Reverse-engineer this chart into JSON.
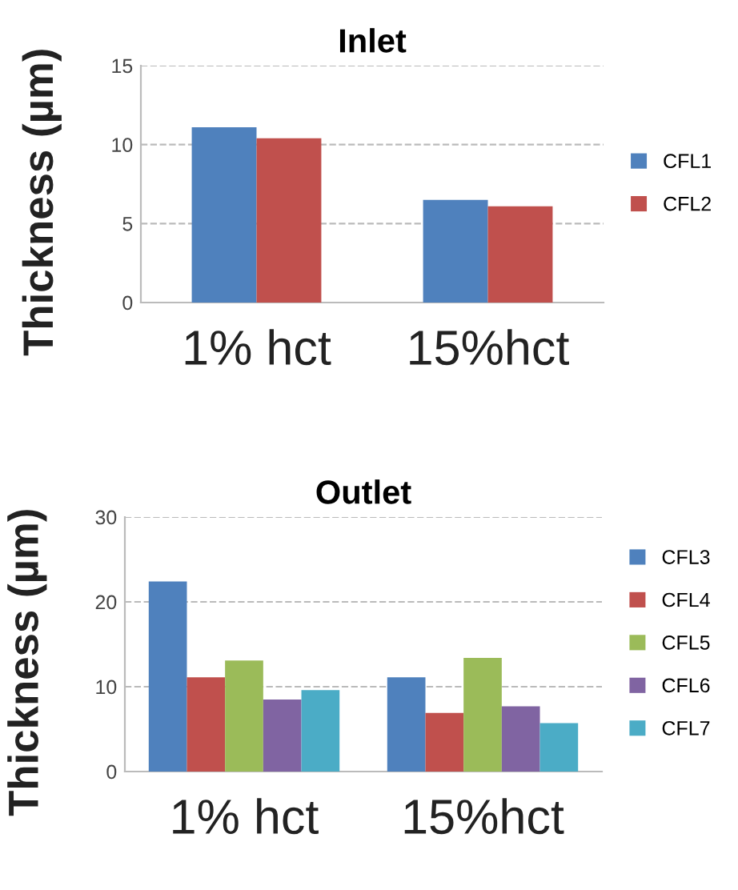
{
  "chart_data": [
    {
      "type": "bar",
      "title": "Inlet",
      "ylabel": "Thickness (µm)",
      "categories": [
        "1% hct",
        "15%hct"
      ],
      "series": [
        {
          "name": "CFL1",
          "color": "#4f81bd",
          "values": [
            11.1,
            6.5
          ]
        },
        {
          "name": "CFL2",
          "color": "#c0504d",
          "values": [
            10.4,
            6.1
          ]
        }
      ],
      "ylim": [
        0,
        15
      ],
      "yticks": [
        0,
        5,
        10,
        15
      ],
      "grid": "y",
      "legend": "right"
    },
    {
      "type": "bar",
      "title": "Outlet",
      "ylabel": "Thickness (µm)",
      "categories": [
        "1% hct",
        "15%hct"
      ],
      "series": [
        {
          "name": "CFL3",
          "color": "#4f81bd",
          "values": [
            22.4,
            11.1
          ]
        },
        {
          "name": "CFL4",
          "color": "#c0504d",
          "values": [
            11.1,
            6.9
          ]
        },
        {
          "name": "CFL5",
          "color": "#9bbb59",
          "values": [
            13.1,
            13.4
          ]
        },
        {
          "name": "CFL6",
          "color": "#8064a2",
          "values": [
            8.5,
            7.7
          ]
        },
        {
          "name": "CFL7",
          "color": "#4bacc6",
          "values": [
            9.6,
            5.7
          ]
        }
      ],
      "ylim": [
        0,
        30
      ],
      "yticks": [
        0,
        10,
        20,
        30
      ],
      "grid": "y",
      "legend": "right"
    }
  ]
}
